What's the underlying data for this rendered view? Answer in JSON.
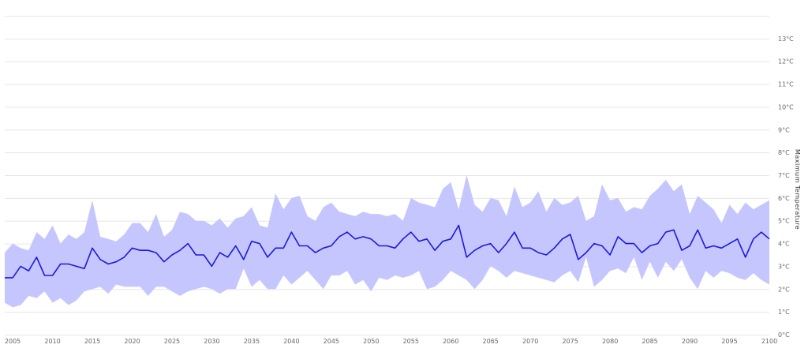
{
  "chart_data": {
    "type": "area",
    "title": "",
    "xlabel": "",
    "ylabel": "Maximum Temperature",
    "xlim": [
      2004,
      2100
    ],
    "ylim": [
      0,
      14
    ],
    "xticks": [
      2005,
      2010,
      2015,
      2020,
      2025,
      2030,
      2035,
      2040,
      2045,
      2050,
      2055,
      2060,
      2065,
      2070,
      2075,
      2080,
      2085,
      2090,
      2095,
      2100
    ],
    "yticks": [
      "0°C",
      "1°C",
      "2°C",
      "3°C",
      "4°C",
      "5°C",
      "6°C",
      "7°C",
      "8°C",
      "9°C",
      "10°C",
      "11°C",
      "12°C",
      "13°C"
    ],
    "grid": true,
    "legend": "none",
    "colors": {
      "band": "#c6c6ff",
      "line": "#1a1adf",
      "grid": "#e6e6e6"
    },
    "x": [
      2004,
      2005,
      2006,
      2007,
      2008,
      2009,
      2010,
      2011,
      2012,
      2013,
      2014,
      2015,
      2016,
      2017,
      2018,
      2019,
      2020,
      2021,
      2022,
      2023,
      2024,
      2025,
      2026,
      2027,
      2028,
      2029,
      2030,
      2031,
      2032,
      2033,
      2034,
      2035,
      2036,
      2037,
      2038,
      2039,
      2040,
      2041,
      2042,
      2043,
      2044,
      2045,
      2046,
      2047,
      2048,
      2049,
      2050,
      2051,
      2052,
      2053,
      2054,
      2055,
      2056,
      2057,
      2058,
      2059,
      2060,
      2061,
      2062,
      2063,
      2064,
      2065,
      2066,
      2067,
      2068,
      2069,
      2070,
      2071,
      2072,
      2073,
      2074,
      2075,
      2076,
      2077,
      2078,
      2079,
      2080,
      2081,
      2082,
      2083,
      2084,
      2085,
      2086,
      2087,
      2088,
      2089,
      2090,
      2091,
      2092,
      2093,
      2094,
      2095,
      2096,
      2097,
      2098,
      2099,
      2100
    ],
    "series": [
      {
        "type": "line",
        "values": [
          2.5,
          2.5,
          3.0,
          2.8,
          3.4,
          2.6,
          2.6,
          3.1,
          3.1,
          3.0,
          2.9,
          3.8,
          3.3,
          3.1,
          3.2,
          3.4,
          3.8,
          3.7,
          3.7,
          3.6,
          3.2,
          3.5,
          3.7,
          4.0,
          3.5,
          3.5,
          3.0,
          3.6,
          3.4,
          3.9,
          3.3,
          4.1,
          4.0,
          3.4,
          3.8,
          3.8,
          4.5,
          3.9,
          3.9,
          3.6,
          3.8,
          3.9,
          4.3,
          4.5,
          4.2,
          4.3,
          4.2,
          3.9,
          3.9,
          3.8,
          4.2,
          4.5,
          4.1,
          4.2,
          3.7,
          4.1,
          4.2,
          4.8,
          3.4,
          3.7,
          3.9,
          4.0,
          3.6,
          4.0,
          4.5,
          3.8,
          3.8,
          3.6,
          3.5,
          3.8,
          4.2,
          4.4,
          3.3,
          3.6,
          4.0,
          3.9,
          3.5,
          4.3,
          4.0,
          4.0,
          3.6,
          3.9,
          4.0,
          4.5,
          4.6,
          3.7,
          3.9,
          4.6,
          3.8,
          3.9,
          3.8,
          4.0,
          4.2,
          3.4,
          4.2,
          4.5,
          4.2
        ]
      },
      {
        "type": "band-lower",
        "values": [
          1.4,
          1.2,
          1.3,
          1.7,
          1.6,
          1.9,
          1.4,
          1.6,
          1.3,
          1.5,
          1.9,
          2.0,
          2.1,
          1.8,
          2.2,
          2.1,
          2.1,
          2.1,
          1.7,
          2.1,
          2.1,
          1.9,
          1.7,
          1.9,
          2.0,
          2.1,
          2.0,
          1.8,
          2.0,
          2.0,
          2.9,
          2.1,
          2.4,
          2.0,
          2.0,
          2.6,
          2.2,
          2.5,
          2.8,
          2.4,
          2.0,
          2.6,
          2.6,
          2.8,
          2.2,
          2.4,
          1.9,
          2.5,
          2.4,
          2.6,
          2.5,
          2.6,
          2.8,
          2.0,
          2.1,
          2.4,
          2.8,
          2.6,
          2.4,
          2.0,
          2.4,
          3.0,
          2.8,
          2.5,
          2.8,
          2.7,
          2.6,
          2.5,
          2.4,
          2.3,
          2.6,
          2.8,
          2.3,
          3.4,
          2.1,
          2.4,
          2.8,
          2.9,
          2.7,
          3.4,
          2.4,
          3.2,
          2.5,
          3.2,
          2.8,
          3.3,
          2.5,
          2.0,
          2.8,
          2.5,
          2.8,
          2.7,
          2.5,
          2.4,
          2.7,
          2.4,
          2.2
        ]
      },
      {
        "type": "band-upper",
        "values": [
          3.6,
          4.0,
          3.8,
          3.7,
          4.5,
          4.2,
          4.8,
          4.0,
          4.4,
          4.2,
          4.5,
          5.9,
          4.3,
          4.2,
          4.1,
          4.4,
          4.9,
          4.9,
          4.5,
          5.3,
          4.3,
          4.6,
          5.4,
          5.3,
          5.0,
          5.0,
          4.8,
          5.1,
          4.7,
          5.1,
          5.2,
          5.6,
          4.8,
          4.7,
          6.2,
          5.5,
          6.0,
          6.1,
          5.2,
          5.0,
          5.6,
          5.8,
          5.4,
          5.3,
          5.2,
          5.4,
          5.3,
          5.3,
          5.2,
          5.3,
          5.0,
          6.0,
          5.8,
          5.7,
          5.6,
          6.4,
          6.7,
          5.5,
          7.0,
          5.7,
          5.4,
          6.0,
          5.9,
          5.2,
          6.5,
          5.6,
          5.8,
          6.3,
          5.4,
          6.0,
          5.7,
          5.8,
          6.1,
          5.0,
          5.2,
          6.6,
          5.9,
          6.0,
          5.4,
          5.6,
          5.5,
          6.1,
          6.4,
          6.8,
          6.3,
          6.6,
          5.3,
          6.1,
          5.8,
          5.5,
          4.9,
          5.7,
          5.3,
          5.8,
          5.5,
          5.7,
          5.9
        ]
      }
    ]
  }
}
